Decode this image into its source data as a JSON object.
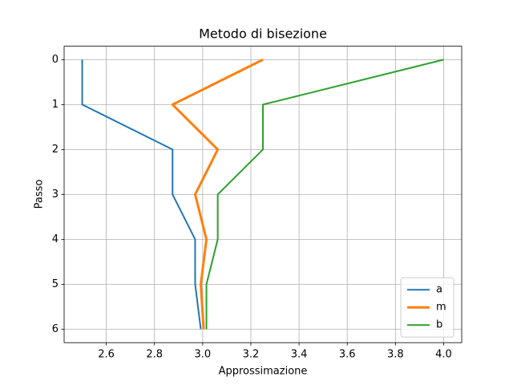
{
  "chart_data": {
    "type": "line",
    "title": "Metodo di bisezione",
    "xlabel": "Approssimazione",
    "ylabel": "Passo",
    "y": [
      0,
      1,
      2,
      3,
      4,
      5,
      6
    ],
    "series": [
      {
        "name": "a",
        "color": "#1f77b4",
        "linewidth": 2,
        "values": [
          2.5,
          2.5,
          2.875,
          2.875,
          2.96875,
          2.96875,
          2.9921875
        ]
      },
      {
        "name": "m",
        "color": "#ff7f0e",
        "linewidth": 3,
        "values": [
          3.25,
          2.875,
          3.0625,
          2.96875,
          3.015625,
          2.9921875,
          3.00390625
        ]
      },
      {
        "name": "b",
        "color": "#2ca02c",
        "linewidth": 2,
        "values": [
          4.0,
          3.25,
          3.25,
          3.0625,
          3.0625,
          3.015625,
          3.015625
        ]
      }
    ],
    "xlim": [
      2.425,
      4.075
    ],
    "xticks": [
      2.6,
      2.8,
      {
        "value": 3,
        "label": "3.0"
      },
      3.2,
      3.4,
      3.6,
      3.8,
      {
        "value": 4,
        "label": "4.0"
      }
    ],
    "ylim": [
      6.3,
      -0.3
    ],
    "yticks": [
      0,
      1,
      2,
      3,
      4,
      5,
      6
    ],
    "grid": true,
    "legend": "lower right"
  }
}
